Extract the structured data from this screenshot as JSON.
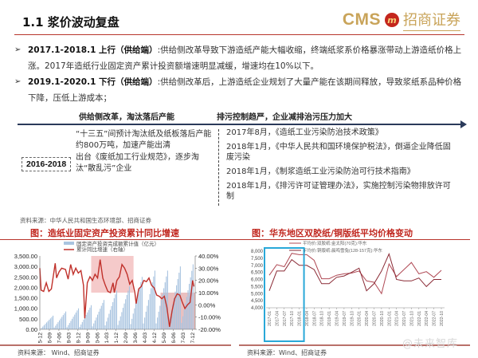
{
  "header": {
    "title": "1.1 浆价波动复盘",
    "logo_cms": "CMS",
    "logo_badge": "m",
    "logo_cn": "招商证券"
  },
  "bullets": [
    {
      "mark": "➢",
      "lead": "2017.1-2018.1 上行（供给端）",
      "text": ":供给侧改革导致下游造纸产能大幅收缩，终端纸浆系价格暴涨带动上游造纸价格上涨。2017年造纸行业固定资产累计投资额增速明显减缓，增速均在10%以下。"
    },
    {
      "mark": "➢",
      "lead": "2019.1-2020.1 下行（供给端）",
      "text": ":供给侧改革后，上游造纸企业规划了大量产能在该期间释放，导致浆纸系品种价格下降，压低上游成本；"
    }
  ],
  "timeline": {
    "left_heading": "供给侧改革，淘汰落后产能",
    "right_heading": "排污控制趋严，企业减排治污压力加大",
    "period": "2016-2018",
    "left_items": [
      "“十三五”间预计淘汰纸及纸板落后产能约800万吨，加速产能出清",
      "出台《废纸加工行业规范》，逐步淘汰“散乱污”企业"
    ],
    "right_items": [
      "2017年8月，《造纸工业污染防治技术政策》",
      "2018年1月，《中华人民共和国环境保护税法》，倒逼企业降低固废污染",
      "2018年1月，《制浆造纸工业污染防治可行技术指南》",
      "2018年1月，《排污许可证管理办法》，实施控制污染物排放许可制"
    ],
    "source": "资料来源：中华人民共和国生态环境部、招商证券"
  },
  "figures": {
    "left_title": "图：造纸业固定资产投资累计同比增速",
    "right_title": "图：华东地区双胶纸/铜版纸平均价格变动",
    "left_source": "资料来源： Wind、招商证券",
    "right_source": "资料来源：Wind、招商证券"
  },
  "watermark": "@未来智库",
  "colors": {
    "accent_red": "#c0261e",
    "rule_red": "#b8352c",
    "bar_blue": "#a9c4e0",
    "line_red": "#c0312b",
    "highlight_pink": "#f2b8b8",
    "highlight_blue": "#29a8d8",
    "gold": "#c9a45a",
    "price_line_1": "#b04a55",
    "price_line_2": "#8a2a35"
  },
  "chart_data": [
    {
      "type": "bar+line",
      "title": "造纸业固定资产投资累计同比增速",
      "legend": [
        "固定资产投资完成额累计值（亿元）",
        "累计同比增速（右轴）"
      ],
      "legend_position": "top",
      "categories": [
        "2005-12",
        "2006-09",
        "2007-06",
        "2008-03",
        "2008-12",
        "2009-09",
        "2010-06",
        "2011-03",
        "2011-12",
        "2012-09",
        "2013-06",
        "2014-03",
        "2014-12",
        "2015-09",
        "2016-06",
        "2017-03",
        "2017-12"
      ],
      "left_axis": {
        "ticks": [
          "0.00",
          "500.00",
          "1,000.00",
          "1,500.00",
          "2,000.00",
          "2,500.00",
          "3,000.00",
          "3,500.00"
        ],
        "ylim": [
          0,
          3500
        ]
      },
      "right_axis": {
        "ticks": [
          "-20.00%",
          "-10.00%",
          "0.00%",
          "10.00%",
          "20.00%",
          "30.00%",
          "40.00%"
        ],
        "ylim": [
          -20,
          40
        ]
      },
      "series": [
        {
          "name": "固定资产投资完成额累计值（亿元）",
          "kind": "bar",
          "axis": "left",
          "annual_peaks": [
            {
              "year": 2006,
              "value": 650
            },
            {
              "year": 2007,
              "value": 850
            },
            {
              "year": 2008,
              "value": 1000
            },
            {
              "year": 2009,
              "value": 1150
            },
            {
              "year": 2010,
              "value": 1400
            },
            {
              "year": 2011,
              "value": 1850
            },
            {
              "year": 2012,
              "value": 2050
            },
            {
              "year": 2013,
              "value": 2500
            },
            {
              "year": 2014,
              "value": 2800
            },
            {
              "year": 2015,
              "value": 2800
            },
            {
              "year": 2016,
              "value": 3000
            },
            {
              "year": 2017,
              "value": 3100
            }
          ]
        },
        {
          "name": "累计同比增速（右轴）",
          "kind": "line",
          "axis": "right",
          "points": [
            [
              0,
              30
            ],
            [
              1,
              12
            ],
            [
              3,
              11
            ],
            [
              5,
              18
            ],
            [
              7,
              11
            ],
            [
              9,
              13
            ],
            [
              12,
              34
            ],
            [
              13,
              22
            ],
            [
              15,
              27
            ],
            [
              17,
              30
            ],
            [
              20,
              29
            ],
            [
              22,
              21
            ],
            [
              24,
              33
            ],
            [
              26,
              25
            ],
            [
              28,
              30
            ],
            [
              30,
              26
            ],
            [
              32,
              28
            ],
            [
              34,
              16
            ],
            [
              35,
              -11
            ],
            [
              37,
              18
            ],
            [
              39,
              23
            ],
            [
              41,
              20
            ],
            [
              43,
              25
            ],
            [
              45,
              22
            ],
            [
              47,
              37
            ],
            [
              49,
              22
            ],
            [
              51,
              16
            ],
            [
              53,
              11
            ],
            [
              55,
              10
            ],
            [
              57,
              18
            ],
            [
              58,
              10
            ],
            [
              60,
              20
            ],
            [
              62,
              23
            ],
            [
              64,
              33
            ],
            [
              66,
              30
            ],
            [
              68,
              25
            ],
            [
              70,
              17
            ],
            [
              72,
              20
            ],
            [
              74,
              10
            ],
            [
              75,
              1
            ],
            [
              77,
              13
            ],
            [
              79,
              15
            ],
            [
              81,
              20
            ],
            [
              83,
              19
            ],
            [
              85,
              22
            ],
            [
              87,
              16
            ],
            [
              89,
              14
            ],
            [
              91,
              8
            ],
            [
              93,
              7
            ],
            [
              95,
              5
            ],
            [
              97,
              7
            ],
            [
              99,
              -2
            ],
            [
              101,
              -18
            ],
            [
              103,
              -5
            ],
            [
              105,
              5
            ],
            [
              107,
              9
            ],
            [
              109,
              8
            ],
            [
              111,
              2
            ],
            [
              113,
              -3
            ],
            [
              115,
              0
            ],
            [
              117,
              2
            ],
            [
              119,
              20
            ],
            [
              120,
              15
            ]
          ],
          "x_total_steps": 121
        }
      ],
      "highlight_regions": [
        {
          "from": "2009-03",
          "to": "2012-09",
          "y_from": 10,
          "y_to": 40,
          "color": "pink"
        },
        {
          "from": "2015-03",
          "to": "2017-12",
          "y_from": -20,
          "y_to": 10,
          "color": "pink"
        }
      ]
    },
    {
      "type": "line",
      "title": "华东地区双胶纸/铜版纸平均价格变动",
      "legend": [
        "平均价:双胶纸:金太阳(70克):华东",
        "平均价:铜版纸:晨鸣雪兔(128-157克):华东"
      ],
      "legend_position": "top",
      "categories": [
        "2017-01",
        "2017-04",
        "2017-07",
        "2017-10",
        "2018-01",
        "2018-04",
        "2018-07",
        "2018-10",
        "2019-01",
        "2019-04",
        "2019-07",
        "2019-10",
        "2020-01",
        "2020-04",
        "2020-07",
        "2020-10",
        "2021-01",
        "2021-04",
        "2021-07",
        "2021-10",
        "2022-01",
        "2022-04",
        "2022-07",
        "2022-10"
      ],
      "ylim": [
        4000,
        8000
      ],
      "y_ticks": [
        "4,000",
        "4,500",
        "5,000",
        "5,500",
        "6,000",
        "6,500",
        "7,000",
        "7,500",
        "8,000"
      ],
      "series": [
        {
          "name": "平均价:双胶纸:金太阳(70克):华东",
          "values": [
            6300,
            7050,
            6900,
            7850,
            7750,
            7750,
            7350,
            6050,
            6050,
            6300,
            6400,
            6450,
            6600,
            5900,
            5800,
            5000,
            7100,
            6200,
            6700,
            7200,
            6400,
            6550,
            6150,
            6650
          ]
        },
        {
          "name": "平均价:铜版纸:晨鸣雪兔(128-157克):华东",
          "values": [
            5200,
            6600,
            6600,
            7400,
            7000,
            7000,
            6700,
            5700,
            5700,
            6150,
            6250,
            6500,
            6800,
            5200,
            5700,
            6600,
            7800,
            6000,
            5900,
            5900,
            6100,
            5500,
            6000,
            6000
          ]
        }
      ],
      "highlight_box": {
        "from": "2017-01",
        "to": "2018-01",
        "color": "#29a8d8"
      }
    }
  ]
}
